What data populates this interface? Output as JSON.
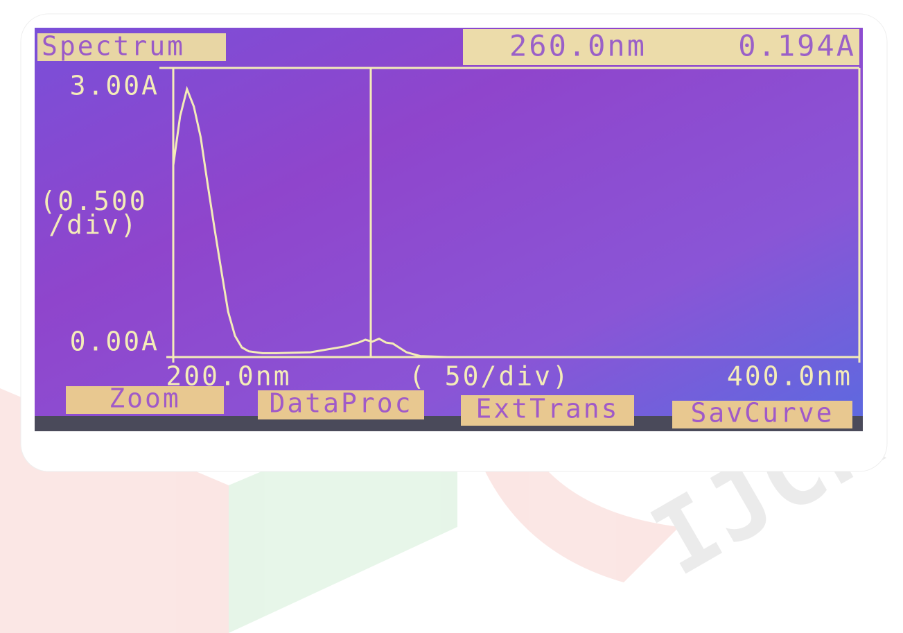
{
  "chart_data": {
    "type": "line",
    "title": "Spectrum",
    "readout": [
      "260.0nm",
      "0.194A"
    ],
    "ylabel": "(0.500\n/div)",
    "xlabel": "(  50/div)",
    "buttons": [
      "Zoom",
      "DataProc",
      "ExtTrans",
      "SavCurve"
    ],
    "x": [
      200,
      202,
      204,
      206,
      208,
      210,
      212,
      214,
      216,
      218,
      220,
      222,
      226,
      230,
      240,
      250,
      254,
      256,
      258,
      260,
      262,
      264,
      268,
      272,
      280,
      300,
      350,
      400
    ],
    "y": [
      1.99,
      2.5,
      2.78,
      2.6,
      2.28,
      1.8,
      1.34,
      0.9,
      0.47,
      0.22,
      0.1,
      0.06,
      0.04,
      0.04,
      0.05,
      0.11,
      0.15,
      0.18,
      0.16,
      0.19,
      0.15,
      0.14,
      0.05,
      0.01,
      0,
      0,
      0,
      0
    ],
    "color": "#f4ecb8",
    "xlim": [
      200,
      400
    ],
    "ylim": [
      0,
      3
    ],
    "xticks": [
      {
        "value": 200,
        "label": "200.0nm"
      },
      {
        "value": 400,
        "label": "400.0nm"
      }
    ],
    "yticks": [
      {
        "value": 0,
        "label": "0.00A"
      },
      {
        "value": 3,
        "label": "3.00A"
      }
    ]
  }
}
